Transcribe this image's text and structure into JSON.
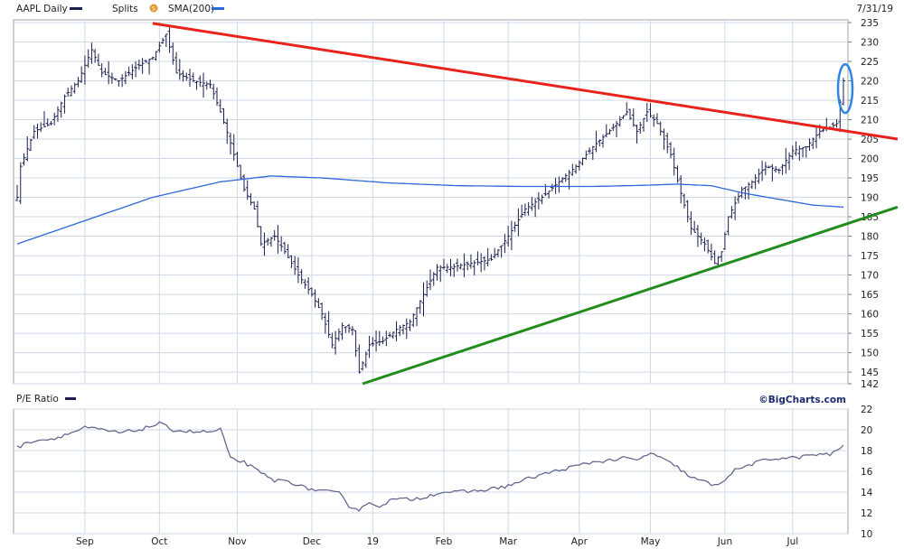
{
  "header": {
    "symbol_label": "AAPL Daily",
    "splits_label": "Splits",
    "splits_badge": "S",
    "sma_label": "SMA(200)",
    "date_label": "7/31/19"
  },
  "pe_panel": {
    "title": "P/E Ratio"
  },
  "branding": {
    "watermark": "©BigCharts.com"
  },
  "colors": {
    "price_bars": "#1b1f4d",
    "sma": "#2c67d8",
    "resistance": "#e8231c",
    "support": "#218c1c",
    "highlight": "#2f86e0",
    "pe_line": "#5a5f86",
    "grid": "#cfd8e6"
  },
  "chart_data": [
    {
      "type": "ohlc",
      "name": "AAPL Daily",
      "x_tick_labels": [
        "Sep",
        "Oct",
        "Nov",
        "Dec",
        "19",
        "Feb",
        "Mar",
        "Apr",
        "May",
        "Jun",
        "Jul"
      ],
      "x_ticks_trading_day": [
        20,
        42,
        65,
        87,
        105,
        126,
        145,
        166,
        187,
        209,
        229
      ],
      "y_tick_labels": [
        "142",
        "145",
        "150",
        "155",
        "160",
        "165",
        "170",
        "175",
        "180",
        "185",
        "190",
        "195",
        "200",
        "205",
        "210",
        "215",
        "220",
        "225",
        "230",
        "235"
      ],
      "ylim": [
        142,
        235
      ],
      "price_anchors": [
        [
          0,
          190
        ],
        [
          1,
          198
        ],
        [
          5,
          207
        ],
        [
          10,
          209
        ],
        [
          14,
          216
        ],
        [
          18,
          220
        ],
        [
          22,
          228
        ],
        [
          25,
          222
        ],
        [
          30,
          220
        ],
        [
          36,
          224
        ],
        [
          40,
          226
        ],
        [
          44,
          232
        ],
        [
          47,
          222
        ],
        [
          52,
          220
        ],
        [
          57,
          219
        ],
        [
          60,
          212
        ],
        [
          63,
          204
        ],
        [
          67,
          192
        ],
        [
          70,
          187
        ],
        [
          72,
          178
        ],
        [
          76,
          180
        ],
        [
          79,
          176
        ],
        [
          83,
          170
        ],
        [
          87,
          165
        ],
        [
          90,
          160
        ],
        [
          93,
          152
        ],
        [
          96,
          157
        ],
        [
          99,
          156
        ],
        [
          101,
          145
        ],
        [
          104,
          152
        ],
        [
          108,
          153
        ],
        [
          112,
          156
        ],
        [
          116,
          158
        ],
        [
          120,
          165
        ],
        [
          124,
          172
        ],
        [
          128,
          172
        ],
        [
          134,
          173
        ],
        [
          140,
          174
        ],
        [
          145,
          180
        ],
        [
          150,
          187
        ],
        [
          155,
          190
        ],
        [
          160,
          194
        ],
        [
          165,
          198
        ],
        [
          170,
          203
        ],
        [
          176,
          208
        ],
        [
          180,
          212
        ],
        [
          183,
          207
        ],
        [
          186,
          212
        ],
        [
          189,
          209
        ],
        [
          193,
          201
        ],
        [
          196,
          191
        ],
        [
          199,
          182
        ],
        [
          203,
          178
        ],
        [
          206,
          173
        ],
        [
          208,
          176
        ],
        [
          210,
          185
        ],
        [
          214,
          192
        ],
        [
          217,
          194
        ],
        [
          221,
          198
        ],
        [
          225,
          197
        ],
        [
          229,
          202
        ],
        [
          233,
          203
        ],
        [
          237,
          207
        ],
        [
          240,
          208
        ],
        [
          242,
          209
        ],
        [
          244,
          220
        ]
      ],
      "sma200_anchors": [
        [
          0,
          178
        ],
        [
          20,
          184
        ],
        [
          40,
          190
        ],
        [
          60,
          194
        ],
        [
          75,
          195.5
        ],
        [
          90,
          195
        ],
        [
          110,
          193.7
        ],
        [
          130,
          193
        ],
        [
          150,
          192.8
        ],
        [
          170,
          192.8
        ],
        [
          185,
          193.1
        ],
        [
          195,
          193.4
        ],
        [
          205,
          193
        ],
        [
          215,
          191
        ],
        [
          225,
          189.5
        ],
        [
          235,
          188
        ],
        [
          244,
          187.5
        ]
      ],
      "resistance_line": {
        "from": [
          40,
          234.8
        ],
        "to": [
          260,
          205
        ]
      },
      "support_line": {
        "from": [
          102,
          142
        ],
        "to": [
          260,
          187.5
        ]
      },
      "highlighted_range": [
        215,
        221
      ]
    },
    {
      "type": "line",
      "name": "P/E Ratio",
      "x_tick_labels": [
        "Sep",
        "Oct",
        "Nov",
        "Dec",
        "19",
        "Feb",
        "Mar",
        "Apr",
        "May",
        "Jun",
        "Jul"
      ],
      "y_tick_labels": [
        "10",
        "12",
        "14",
        "16",
        "18",
        "20",
        "22"
      ],
      "ylim": [
        10,
        22
      ],
      "pe_anchors": [
        [
          0,
          18.3
        ],
        [
          5,
          19
        ],
        [
          10,
          19.1
        ],
        [
          15,
          19.6
        ],
        [
          20,
          20.2
        ],
        [
          25,
          20.0
        ],
        [
          30,
          19.7
        ],
        [
          36,
          20.0
        ],
        [
          42,
          20.6
        ],
        [
          46,
          20.0
        ],
        [
          52,
          19.8
        ],
        [
          58,
          19.8
        ],
        [
          60,
          20.1
        ],
        [
          63,
          17.2
        ],
        [
          67,
          16.9
        ],
        [
          72,
          15.8
        ],
        [
          76,
          15.1
        ],
        [
          80,
          15.1
        ],
        [
          85,
          14.4
        ],
        [
          90,
          14.1
        ],
        [
          95,
          13.9
        ],
        [
          98,
          12.7
        ],
        [
          101,
          12.3
        ],
        [
          103,
          12.9
        ],
        [
          107,
          12.7
        ],
        [
          111,
          13.3
        ],
        [
          116,
          13.3
        ],
        [
          120,
          13.5
        ],
        [
          125,
          14.0
        ],
        [
          130,
          14.0
        ],
        [
          135,
          14.1
        ],
        [
          140,
          14.3
        ],
        [
          145,
          14.6
        ],
        [
          150,
          15.2
        ],
        [
          155,
          15.7
        ],
        [
          160,
          16.1
        ],
        [
          165,
          16.5
        ],
        [
          170,
          16.9
        ],
        [
          176,
          17.1
        ],
        [
          180,
          17.3
        ],
        [
          183,
          17.0
        ],
        [
          187,
          17.8
        ],
        [
          191,
          17.1
        ],
        [
          195,
          16.4
        ],
        [
          199,
          15.4
        ],
        [
          203,
          15.0
        ],
        [
          206,
          14.6
        ],
        [
          208,
          15.0
        ],
        [
          212,
          16.1
        ],
        [
          216,
          16.6
        ],
        [
          220,
          17.0
        ],
        [
          225,
          17.3
        ],
        [
          230,
          17.3
        ],
        [
          235,
          17.6
        ],
        [
          240,
          17.6
        ],
        [
          244,
          18.5
        ]
      ]
    }
  ]
}
